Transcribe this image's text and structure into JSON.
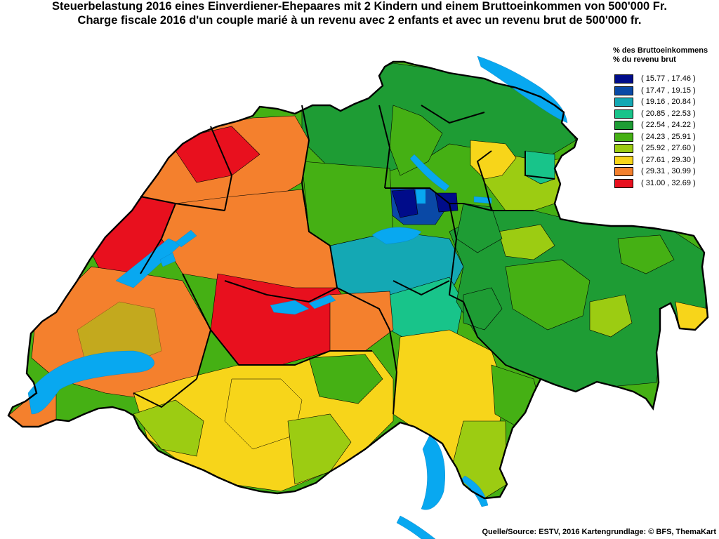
{
  "title": {
    "de": "Steuerbelastung 2016 eines Einverdiener-Ehepaares mit 2 Kindern und einem Bruttoeinkommen von 500'000 Fr.",
    "fr": "Charge fiscale 2016 d'un couple marié à un revenu avec 2 enfants et avec un revenu brut de 500'000 fr."
  },
  "legend": {
    "title_de": "% des Bruttoeinkommens",
    "title_fr": "% du revenu brut",
    "items": [
      {
        "label": "( 15.77 , 17.46 )",
        "color": "#000c8a"
      },
      {
        "label": "( 17.47 , 19.15 )",
        "color": "#0a49a6"
      },
      {
        "label": "( 19.16 , 20.84 )",
        "color": "#14a8b4"
      },
      {
        "label": "( 20.85 , 22.53 )",
        "color": "#18c48a"
      },
      {
        "label": "( 22.54 , 24.22 )",
        "color": "#1e9c34"
      },
      {
        "label": "( 24.23 , 25.91 )",
        "color": "#45b014"
      },
      {
        "label": "( 25.92 , 27.60 )",
        "color": "#9ccc12"
      },
      {
        "label": "( 27.61 , 29.30 )",
        "color": "#f7d51a"
      },
      {
        "label": "( 29.31 , 30.99 )",
        "color": "#f4802d"
      },
      {
        "label": "( 31.00 , 32.69 )",
        "color": "#e8101e"
      }
    ]
  },
  "source": "Quelle/Source: ESTV, 2016 Kartengrundlage: © BFS, ThemaKart",
  "colors": {
    "lake": "#08a8f0",
    "border": "#000000",
    "background": "#ffffff"
  }
}
